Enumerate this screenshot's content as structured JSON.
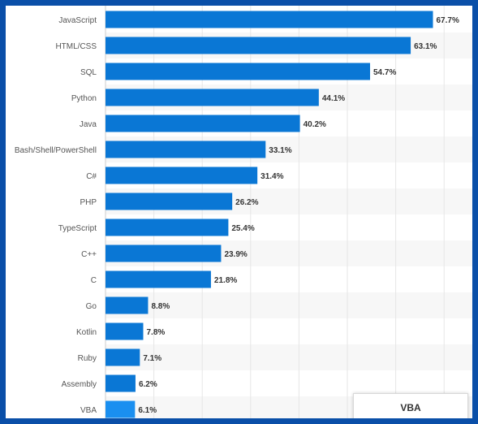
{
  "chart_data": {
    "type": "bar",
    "orientation": "horizontal",
    "categories": [
      "JavaScript",
      "HTML/CSS",
      "SQL",
      "Python",
      "Java",
      "Bash/Shell/PowerShell",
      "C#",
      "PHP",
      "TypeScript",
      "C++",
      "C",
      "Go",
      "Kotlin",
      "Ruby",
      "Assembly",
      "VBA"
    ],
    "values": [
      67.7,
      63.1,
      54.7,
      44.1,
      40.2,
      33.1,
      31.4,
      26.2,
      25.4,
      23.9,
      21.8,
      8.8,
      7.8,
      7.1,
      6.2,
      6.1
    ],
    "value_labels": [
      "67.7%",
      "63.1%",
      "54.7%",
      "44.1%",
      "40.2%",
      "33.1%",
      "31.4%",
      "26.2%",
      "25.4%",
      "23.9%",
      "21.8%",
      "8.8%",
      "7.8%",
      "7.1%",
      "6.2%",
      "6.1%"
    ],
    "xlim": [
      0,
      75
    ],
    "grid": true,
    "colors": {
      "bar": "#0a77d5",
      "bar_highlight": "#1a8ff0",
      "grid": "#e6e6e6",
      "band": "#f7f7f7",
      "label": "#555555",
      "value_label": "#333333",
      "frame": "#0a4fa8"
    },
    "highlight_index": 15
  },
  "tooltip": {
    "title": "VBA"
  }
}
